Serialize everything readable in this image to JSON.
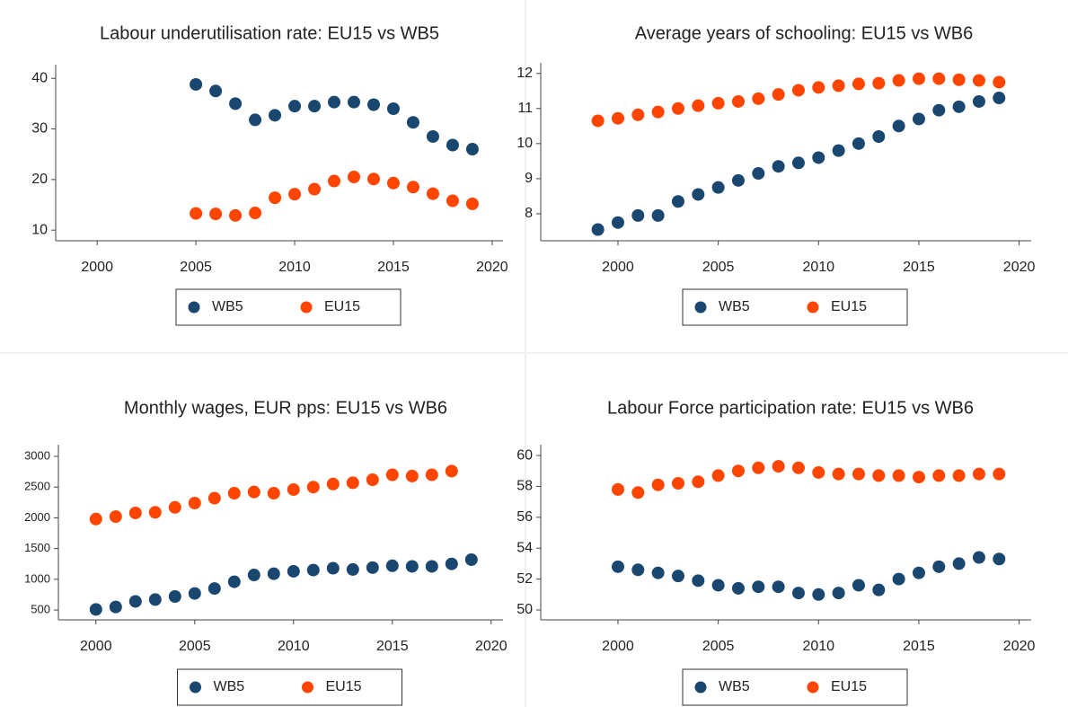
{
  "chart_data": [
    {
      "type": "scatter",
      "title": "Labour underutilisation rate: EU15 vs WB5",
      "x": [
        2005,
        2006,
        2007,
        2008,
        2009,
        2010,
        2011,
        2012,
        2013,
        2014,
        2015,
        2016,
        2017,
        2018,
        2019
      ],
      "series": [
        {
          "name": "WB5",
          "color": "#1a476f",
          "values": [
            38.8,
            37.5,
            35,
            31.8,
            32.7,
            34.5,
            34.5,
            35.3,
            35.3,
            34.8,
            34,
            31.3,
            28.5,
            26.8,
            26
          ]
        },
        {
          "name": "EU15",
          "color": "#ff4500",
          "values": [
            13.3,
            13.2,
            12.9,
            13.4,
            16.4,
            17.1,
            18.1,
            19.7,
            20.5,
            20.1,
            19.3,
            18.5,
            17.2,
            15.8,
            15.2
          ]
        }
      ],
      "xlim": [
        1997.9,
        2020.55
      ],
      "xticks": [
        2000,
        2005,
        2010,
        2015,
        2020
      ],
      "ylim": [
        7.9,
        42.7
      ],
      "yticks": [
        10,
        20,
        30,
        40
      ],
      "legend": "bottom"
    },
    {
      "type": "scatter",
      "title": "Average years of schooling: EU15 vs WB6",
      "x": [
        1999,
        2000,
        2001,
        2002,
        2003,
        2004,
        2005,
        2006,
        2007,
        2008,
        2009,
        2010,
        2011,
        2012,
        2013,
        2014,
        2015,
        2016,
        2017,
        2018,
        2019
      ],
      "series": [
        {
          "name": "WB5",
          "color": "#1a476f",
          "values": [
            7.55,
            7.75,
            7.95,
            7.95,
            8.35,
            8.55,
            8.75,
            8.95,
            9.15,
            9.35,
            9.45,
            9.6,
            9.8,
            10.0,
            10.2,
            10.5,
            10.7,
            10.95,
            11.05,
            11.2,
            11.3
          ]
        },
        {
          "name": "EU15",
          "color": "#ff4500",
          "values": [
            10.65,
            10.72,
            10.82,
            10.9,
            11.0,
            11.08,
            11.15,
            11.2,
            11.28,
            11.4,
            11.52,
            11.6,
            11.65,
            11.7,
            11.72,
            11.8,
            11.85,
            11.85,
            11.82,
            11.8,
            11.75
          ]
        }
      ],
      "xlim": [
        1996.15,
        2020.6
      ],
      "xticks": [
        2000,
        2005,
        2010,
        2015,
        2020
      ],
      "ylim": [
        7.23,
        12.3
      ],
      "yticks": [
        8,
        9,
        10,
        11,
        12
      ],
      "legend": "bottom"
    },
    {
      "type": "scatter",
      "title": "Monthly wages, EUR pps: EU15 vs WB6",
      "x": [
        2000,
        2001,
        2002,
        2003,
        2004,
        2005,
        2006,
        2007,
        2008,
        2009,
        2010,
        2011,
        2012,
        2013,
        2014,
        2015,
        2016,
        2017,
        2018,
        2019
      ],
      "series": [
        {
          "name": "WB5",
          "color": "#1a476f",
          "values": [
            510,
            550,
            640,
            670,
            720,
            770,
            850,
            960,
            1070,
            1090,
            1130,
            1150,
            1180,
            1160,
            1190,
            1220,
            1210,
            1210,
            1250,
            1320
          ]
        },
        {
          "name": "EU15",
          "color": "#ff4500",
          "values": [
            1980,
            2020,
            2080,
            2090,
            2170,
            2240,
            2320,
            2400,
            2420,
            2400,
            2460,
            2500,
            2550,
            2570,
            2620,
            2700,
            2680,
            2700,
            2760,
            null
          ]
        }
      ],
      "xlim": [
        1998.1,
        2020.6
      ],
      "xticks": [
        2000,
        2005,
        2010,
        2015,
        2020
      ],
      "ylim": [
        340,
        3190
      ],
      "yticks": [
        500,
        1000,
        1500,
        2000,
        2500,
        3000
      ],
      "legend": "bottom"
    },
    {
      "type": "scatter",
      "title": "Labour Force participation rate: EU15 vs WB6",
      "x": [
        2000,
        2001,
        2002,
        2003,
        2004,
        2005,
        2006,
        2007,
        2008,
        2009,
        2010,
        2011,
        2012,
        2013,
        2014,
        2015,
        2016,
        2017,
        2018,
        2019
      ],
      "series": [
        {
          "name": "WB5",
          "color": "#1a476f",
          "values": [
            52.8,
            52.6,
            52.4,
            52.2,
            51.9,
            51.6,
            51.4,
            51.5,
            51.5,
            51.1,
            51.0,
            51.1,
            51.6,
            51.3,
            52.0,
            52.4,
            52.8,
            53.0,
            53.4,
            53.3
          ]
        },
        {
          "name": "EU15",
          "color": "#ff4500",
          "values": [
            57.8,
            57.6,
            58.1,
            58.2,
            58.3,
            58.7,
            59.0,
            59.2,
            59.3,
            59.2,
            58.9,
            58.8,
            58.8,
            58.7,
            58.7,
            58.6,
            58.7,
            58.7,
            58.8,
            58.8
          ]
        }
      ],
      "xlim": [
        1996.15,
        2020.6
      ],
      "xticks": [
        2000,
        2005,
        2010,
        2015,
        2020
      ],
      "ylim": [
        49.36,
        60.7
      ],
      "yticks": [
        50,
        52,
        54,
        56,
        58,
        60
      ],
      "legend": "bottom"
    }
  ]
}
